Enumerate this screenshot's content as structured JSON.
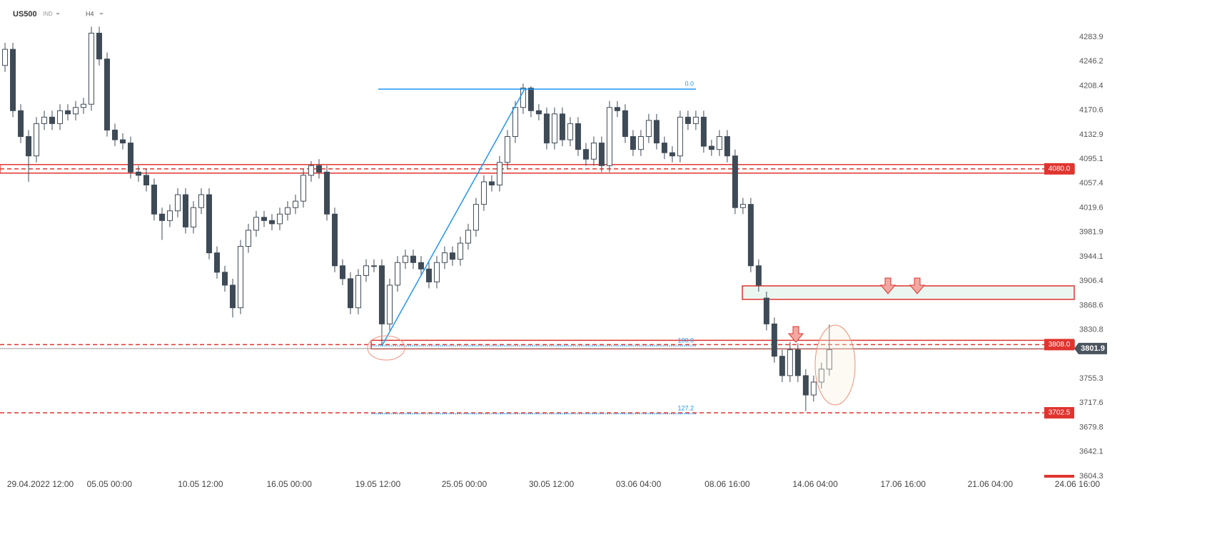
{
  "header": {
    "symbol": "US500",
    "market": "IND",
    "timeframe": "H4"
  },
  "chart_data": {
    "type": "candlestick",
    "open": [
      4240,
      4265,
      4170,
      4130,
      4100,
      4150,
      4160,
      4150,
      4170,
      4165,
      4175,
      4180,
      4290,
      4250,
      4140,
      4125,
      4120,
      4075,
      4070,
      4055,
      4010,
      4000,
      4015,
      4040,
      3990,
      4020,
      4040,
      3950,
      3920,
      3900,
      3865,
      3960,
      3985,
      4005,
      4000,
      3995,
      4010,
      4020,
      4030,
      4070,
      4085,
      4075,
      4010,
      3930,
      3910,
      3865,
      3915,
      3930,
      3930,
      3840,
      3900,
      3935,
      3945,
      3935,
      3925,
      3905,
      3935,
      3950,
      3940,
      3965,
      3985,
      4025,
      4060,
      4055,
      4090,
      4130,
      4175,
      4205,
      4170,
      4165,
      4120,
      4165,
      4125,
      4150,
      4110,
      4095,
      4120,
      4085,
      4175,
      4170,
      4130,
      4110,
      4130,
      4155,
      4120,
      4105,
      4100,
      4160,
      4150,
      4160,
      4115,
      4110,
      4130,
      4100,
      4020,
      4025,
      3930,
      3880,
      3840,
      3790,
      3760,
      3800,
      3760,
      3730,
      3750,
      3770
    ],
    "high": [
      4275,
      4275,
      4180,
      4140,
      4160,
      4170,
      4170,
      4180,
      4180,
      4185,
      4190,
      4300,
      4300,
      4260,
      4150,
      4135,
      4130,
      4085,
      4080,
      4065,
      4020,
      4025,
      4050,
      4050,
      4030,
      4050,
      4050,
      3960,
      3930,
      3910,
      3970,
      3995,
      4015,
      4015,
      4010,
      4020,
      4030,
      4040,
      4080,
      4092,
      4095,
      4085,
      4020,
      3940,
      3920,
      3925,
      3940,
      3940,
      3940,
      3910,
      3945,
      3955,
      3955,
      3945,
      3935,
      3945,
      3960,
      3960,
      3975,
      3995,
      4035,
      4070,
      4070,
      4100,
      4140,
      4185,
      4212,
      4208,
      4180,
      4175,
      4175,
      4175,
      4160,
      4160,
      4120,
      4130,
      4130,
      4185,
      4185,
      4180,
      4140,
      4140,
      4165,
      4165,
      4130,
      4115,
      4170,
      4170,
      4170,
      4170,
      4125,
      4140,
      4140,
      4110,
      4035,
      4035,
      3940,
      3890,
      3850,
      3800,
      3812,
      3810,
      3770,
      3760,
      3780,
      3839
    ],
    "low": [
      4230,
      4160,
      4120,
      4060,
      4090,
      4140,
      4140,
      4140,
      4155,
      4155,
      4165,
      4170,
      4240,
      4130,
      4115,
      4110,
      4065,
      4060,
      4045,
      4000,
      3970,
      3990,
      4005,
      3980,
      3980,
      4010,
      3940,
      3910,
      3890,
      3850,
      3855,
      3950,
      3975,
      3990,
      3985,
      3985,
      4000,
      4010,
      4020,
      4060,
      4065,
      4000,
      3920,
      3900,
      3855,
      3855,
      3905,
      3920,
      3808,
      3830,
      3890,
      3925,
      3925,
      3915,
      3895,
      3895,
      3925,
      3930,
      3930,
      3955,
      3975,
      4015,
      4045,
      4045,
      4080,
      4120,
      4165,
      4160,
      4155,
      4110,
      4110,
      4115,
      4115,
      4100,
      4085,
      4085,
      4075,
      4075,
      4160,
      4120,
      4100,
      4100,
      4120,
      4110,
      4095,
      4090,
      4090,
      4140,
      4140,
      4105,
      4100,
      4100,
      4090,
      4010,
      4010,
      3920,
      3890,
      3830,
      3780,
      3750,
      3750,
      3750,
      3705,
      3720,
      3740,
      3760
    ],
    "close": [
      4265,
      4170,
      4130,
      4100,
      4150,
      4160,
      4150,
      4170,
      4165,
      4175,
      4180,
      4290,
      4250,
      4140,
      4125,
      4120,
      4075,
      4070,
      4055,
      4010,
      4000,
      4015,
      4040,
      3990,
      4020,
      4040,
      3950,
      3920,
      3900,
      3865,
      3960,
      3985,
      4005,
      4000,
      3995,
      4010,
      4020,
      4030,
      4070,
      4085,
      4075,
      4010,
      3930,
      3910,
      3865,
      3915,
      3930,
      3930,
      3840,
      3900,
      3935,
      3945,
      3935,
      3925,
      3905,
      3935,
      3950,
      3940,
      3965,
      3985,
      4025,
      4060,
      4055,
      4090,
      4130,
      4175,
      4205,
      4170,
      4165,
      4120,
      4165,
      4125,
      4150,
      4110,
      4095,
      4120,
      4085,
      4175,
      4170,
      4130,
      4110,
      4130,
      4155,
      4120,
      4105,
      4100,
      4160,
      4150,
      4160,
      4115,
      4110,
      4130,
      4100,
      4020,
      4025,
      3930,
      3900,
      3840,
      3790,
      3760,
      3800,
      3760,
      3730,
      3750,
      3770,
      3800
    ],
    "up_color": "#ffffff",
    "down_color": "#3e4a56",
    "xlim": [
      -0.64,
      136.2
    ],
    "ylim": [
      3580,
      4341.3
    ],
    "xticks": [
      {
        "value": 4.5,
        "label": "29.04.2022 12:00"
      },
      {
        "value": 13.3,
        "label": "05.05 00:00"
      },
      {
        "value": 24.9,
        "label": "10.05 12:00"
      },
      {
        "value": 36.2,
        "label": "16.05 00:00"
      },
      {
        "value": 47.5,
        "label": "19.05 12:00"
      },
      {
        "value": 58.5,
        "label": "25.05 00:00"
      },
      {
        "value": 69.6,
        "label": "30.05 12:00"
      },
      {
        "value": 80.7,
        "label": "03.06 04:00"
      },
      {
        "value": 92,
        "label": "08.06 16:00"
      },
      {
        "value": 103.2,
        "label": "14.06 04:00"
      },
      {
        "value": 114.4,
        "label": "17.06 16:00"
      },
      {
        "value": 125.5,
        "label": "21.06 04:00"
      },
      {
        "value": 136.6,
        "label": "24.06 16:00"
      }
    ],
    "yticks": [
      4283.9,
      4246.2,
      4208.4,
      4170.6,
      4132.9,
      4095.1,
      4057.4,
      4019.6,
      3981.9,
      3944.1,
      3906.4,
      3868.6,
      3830.8,
      3755.3,
      3717.6,
      3679.8,
      3642.1,
      3604.3
    ],
    "levels": [
      {
        "value": 4080,
        "label": "4080.0",
        "style": "zone"
      },
      {
        "value": 3808,
        "label": "3808.0",
        "style": "zone"
      },
      {
        "value": 3702.5,
        "label": "3702.5",
        "style": "line"
      }
    ],
    "level_color": "#e0342f",
    "last_price": {
      "value": 3801.9,
      "label": "3801.9"
    },
    "resistance_zone": {
      "top": 3898.9,
      "bottom": 3878
    },
    "fibonacci": {
      "color": "#2196f3",
      "levels": [
        {
          "ratio": {
            "value": 0,
            "label": "0.0"
          },
          "price": 4203.4
        },
        {
          "ratio": {
            "value": 100,
            "label": "100.0"
          },
          "price": 3806
        },
        {
          "ratio": 127.2,
          "price": 3701
        }
      ]
    }
  }
}
